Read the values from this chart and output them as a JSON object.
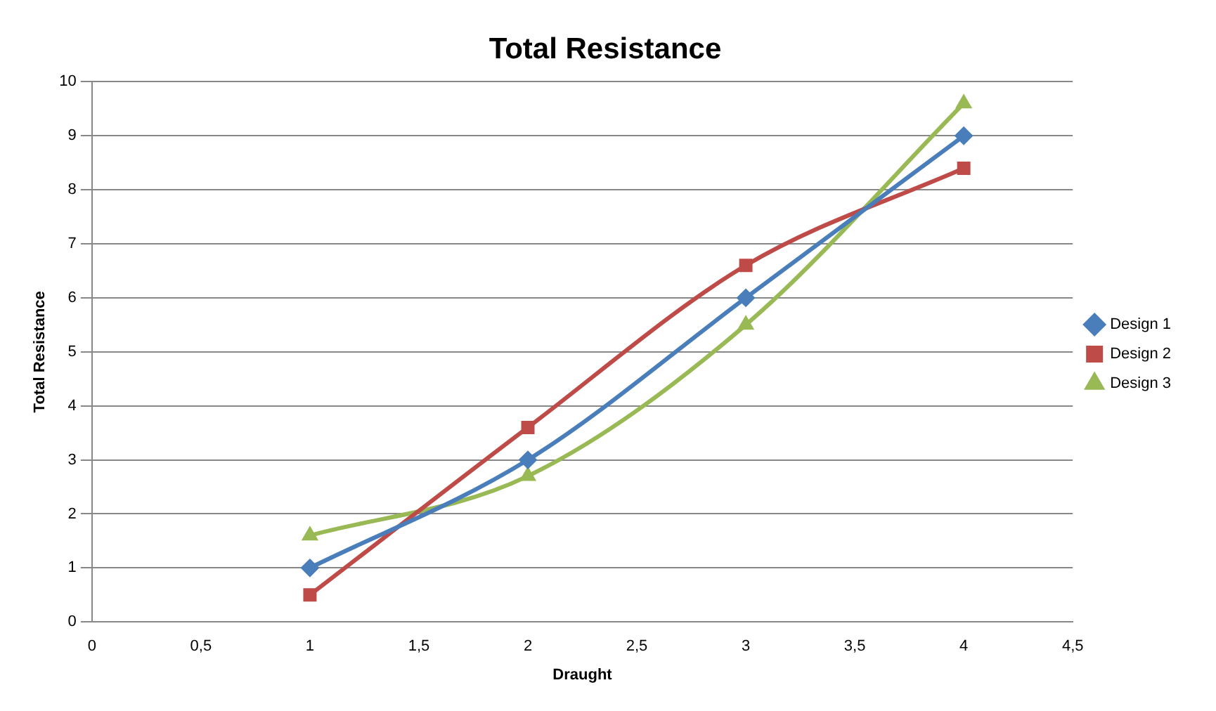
{
  "chart_data": {
    "type": "line",
    "title": "Total Resistance",
    "xlabel": "Draught",
    "ylabel": "Total Resistance",
    "x": [
      1,
      2,
      3,
      4
    ],
    "series": [
      {
        "name": "Design 1",
        "color": "#4a7ebb",
        "marker": "diamond",
        "values": [
          1,
          3,
          6,
          9
        ]
      },
      {
        "name": "Design 2",
        "color": "#be4b48",
        "marker": "square",
        "values": [
          0.5,
          3.6,
          6.6,
          8.4
        ]
      },
      {
        "name": "Design 3",
        "color": "#98b954",
        "marker": "triangle",
        "values": [
          1.6,
          2.7,
          5.5,
          9.6
        ]
      }
    ],
    "xlim": [
      0,
      4.5
    ],
    "xticks": [
      0,
      {
        "value": 0.5,
        "label": "0,5"
      },
      1,
      {
        "value": 1.5,
        "label": "1,5"
      },
      2,
      {
        "value": 2.5,
        "label": "2,5"
      },
      3,
      {
        "value": 3.5,
        "label": "3,5"
      },
      4,
      {
        "value": 4.5,
        "label": "4,5"
      }
    ],
    "ylim": [
      0,
      10
    ],
    "yticks": [
      0,
      1,
      2,
      3,
      4,
      5,
      6,
      7,
      8,
      9,
      10
    ],
    "grid": "y",
    "legend": "right",
    "line_style": "solid"
  }
}
